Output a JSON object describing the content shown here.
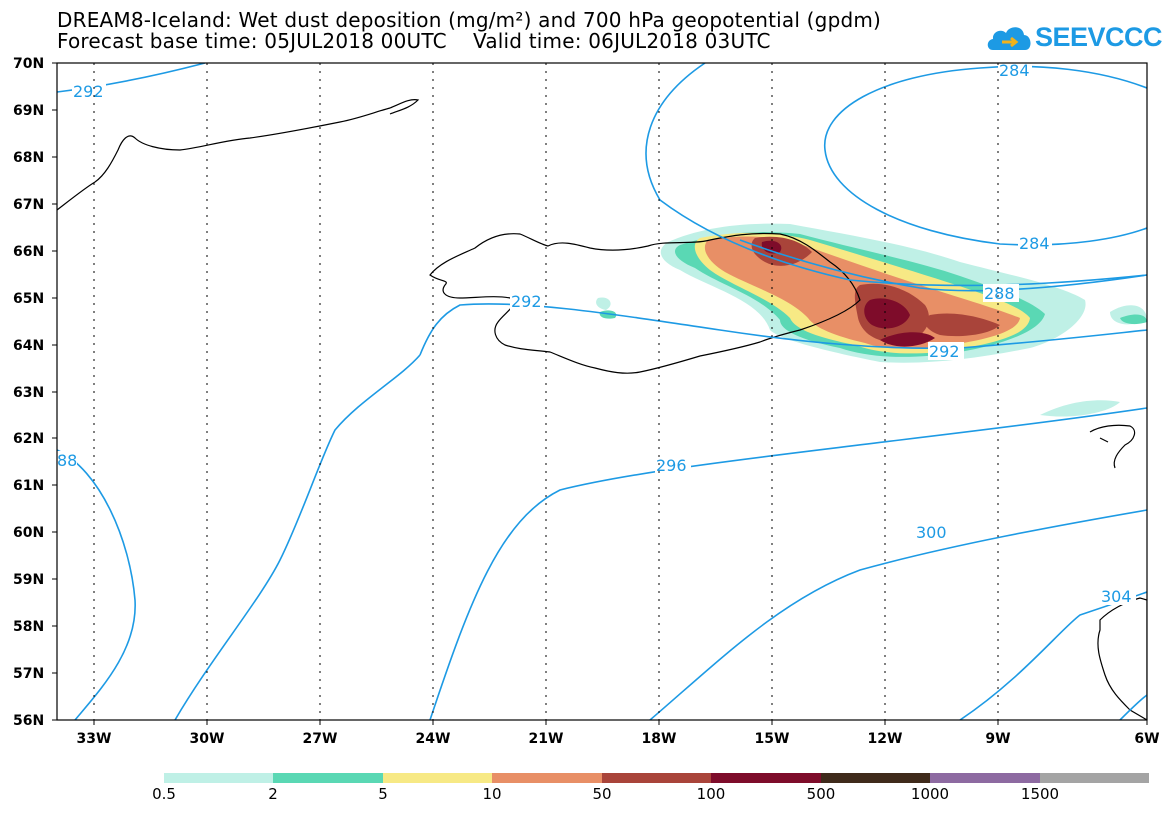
{
  "title": {
    "line1": "DREAM8-Iceland: Wet dust deposition (mg/m²) and 700 hPa geopotential (gpdm)",
    "line2": "Forecast base time: 05JUL2018 00UTC    Valid time: 06JUL2018 03UTC"
  },
  "logo": {
    "text": "SEEVCCC",
    "icon": "cloud-icon"
  },
  "map": {
    "lat_labels": [
      "70N",
      "69N",
      "68N",
      "67N",
      "66N",
      "65N",
      "64N",
      "63N",
      "62N",
      "61N",
      "60N",
      "59N",
      "58N",
      "57N",
      "56N"
    ],
    "lon_labels": [
      "33W",
      "30W",
      "27W",
      "24W",
      "21W",
      "18W",
      "15W",
      "12W",
      "9W",
      "6W"
    ],
    "contour_color": "#1d9ae4",
    "contour_labels": [
      "292",
      "284",
      "284",
      "292",
      "288",
      "292",
      "88",
      "296",
      "300",
      "304"
    ]
  },
  "colorbar": {
    "colors": [
      "#bff0e6",
      "#5ad8b4",
      "#f7e985",
      "#e88f66",
      "#a9443a",
      "#7e0c2a",
      "#3f2a1b",
      "#8d6aa1",
      "#a4a4a4"
    ],
    "labels": [
      "0.5",
      "2",
      "5",
      "10",
      "50",
      "100",
      "500",
      "1000",
      "1500"
    ]
  }
}
